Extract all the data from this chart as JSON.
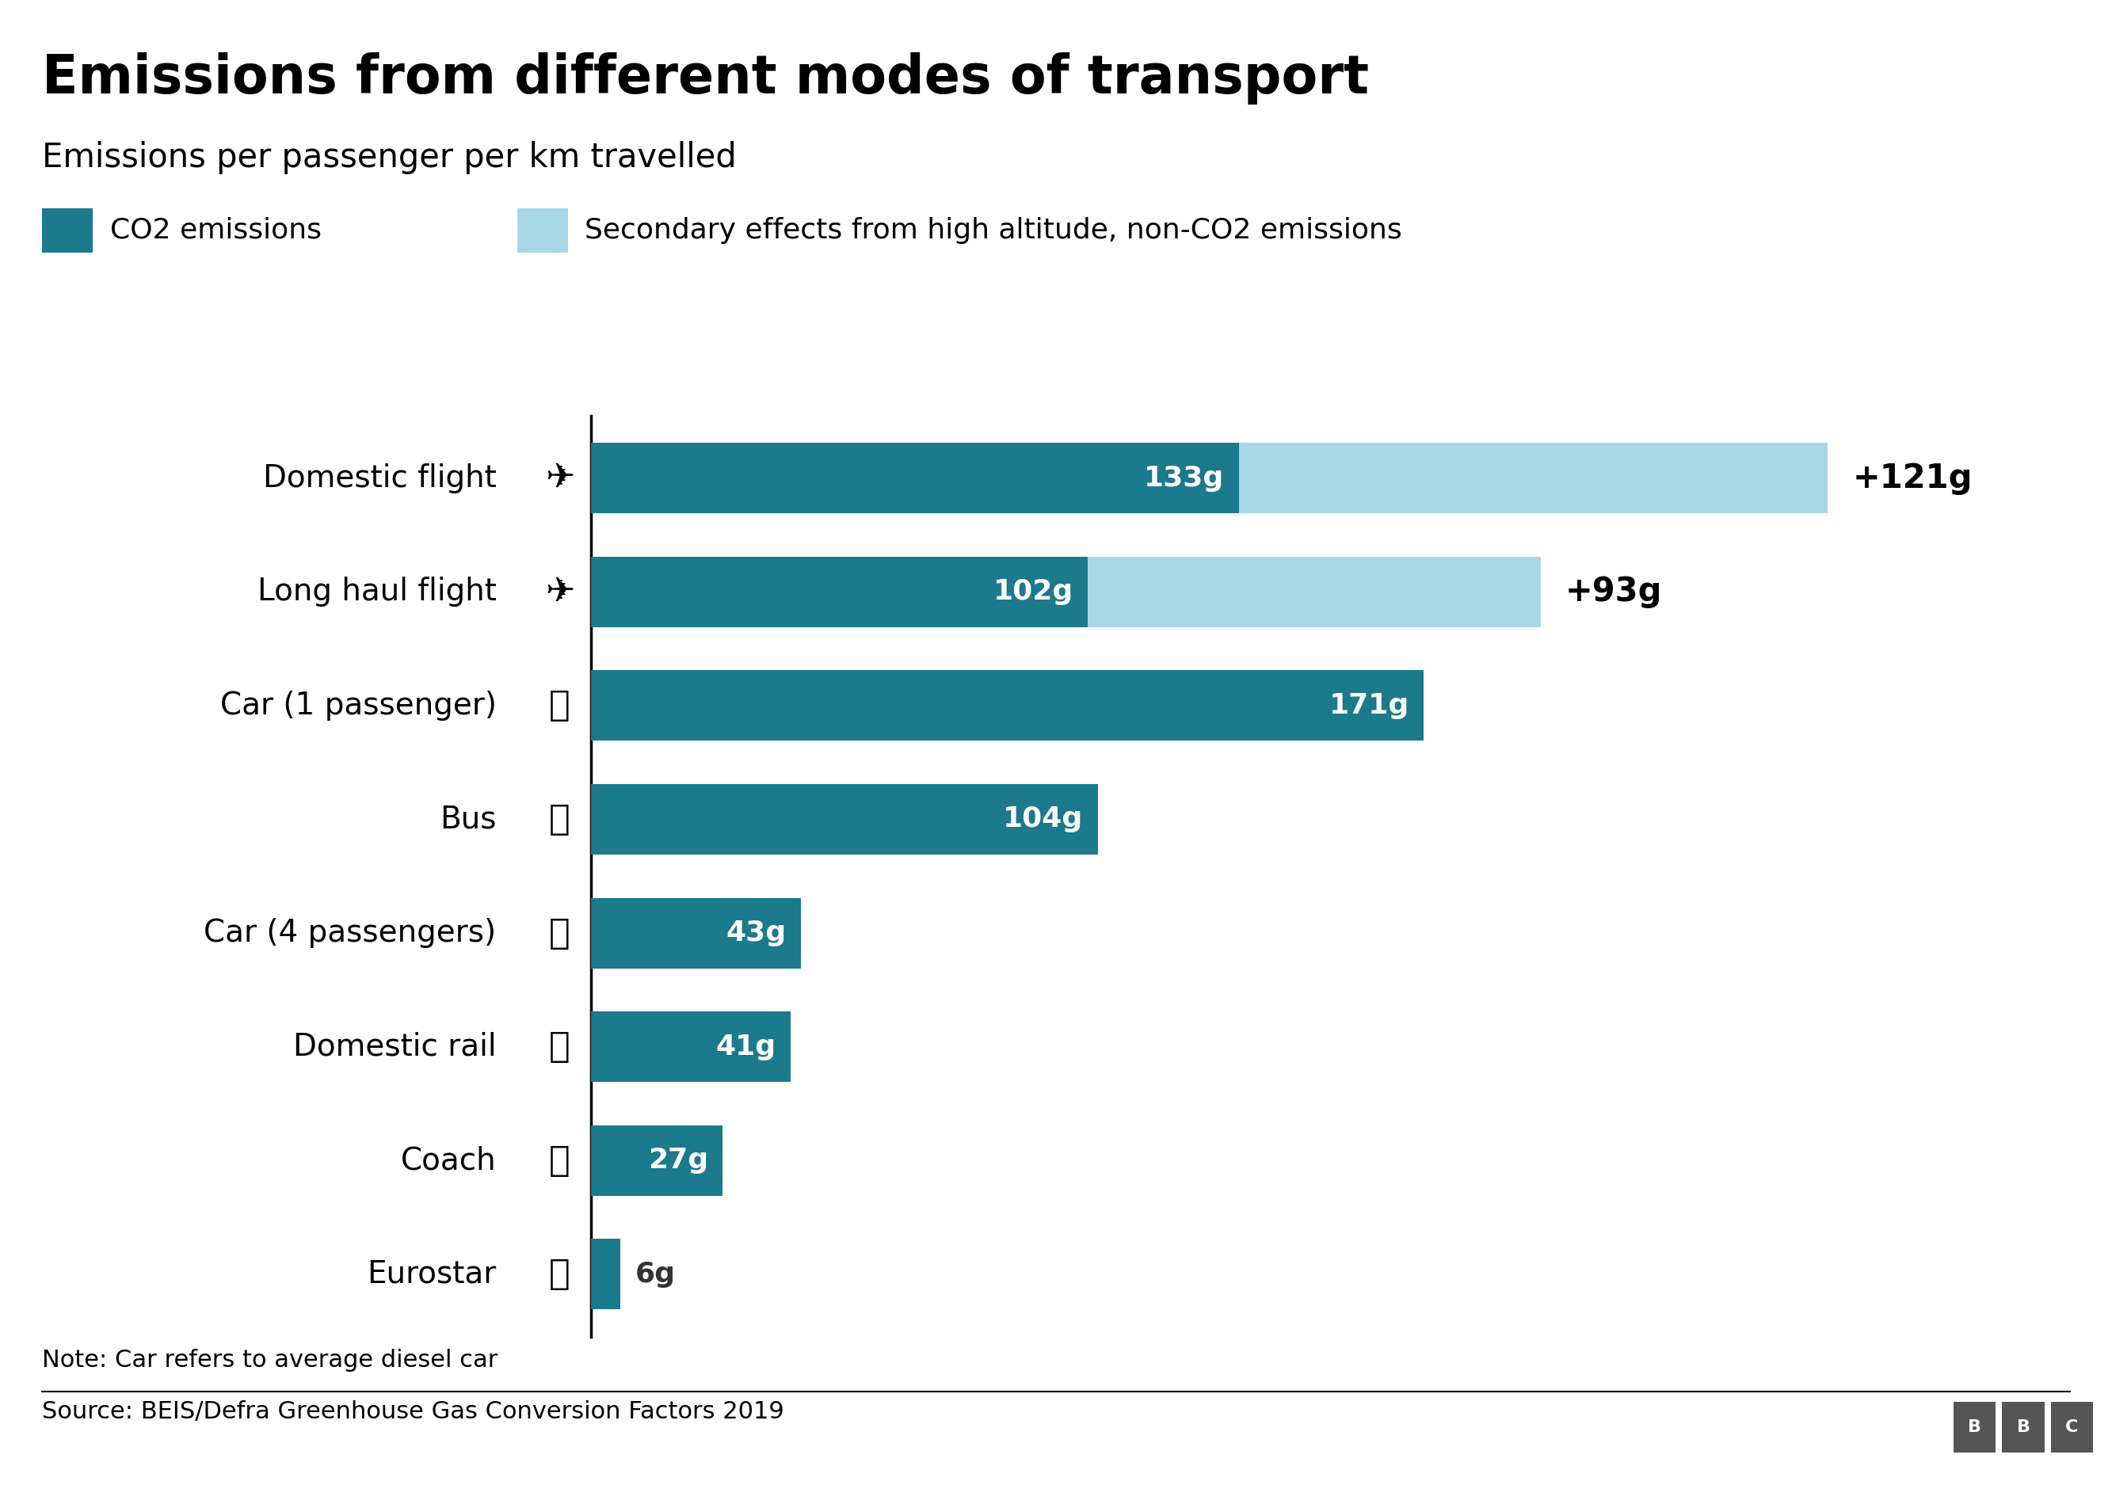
{
  "title": "Emissions from different modes of transport",
  "subtitle": "Emissions per passenger per km travelled",
  "categories": [
    "Domestic flight",
    "Long haul flight",
    "Car (1 passenger)",
    "Bus",
    "Car (4 passengers)",
    "Domestic rail",
    "Coach",
    "Eurostar"
  ],
  "icons": [
    "✈",
    "✈",
    "▮",
    "▮",
    "▮",
    "▮",
    "▮",
    "▮"
  ],
  "co2_values": [
    133,
    102,
    171,
    104,
    43,
    41,
    27,
    6
  ],
  "secondary_values": [
    121,
    93,
    0,
    0,
    0,
    0,
    0,
    0
  ],
  "co2_color": "#1b7a8c",
  "secondary_color": "#a8d8e8",
  "bar_height": 0.62,
  "xlim": [
    0,
    295
  ],
  "note": "Note: Car refers to average diesel car",
  "source": "Source: BEIS/Defra Greenhouse Gas Conversion Factors 2019",
  "legend_co2": "CO2 emissions",
  "legend_secondary": "Secondary effects from high altitude, non-CO2 emissions",
  "background_color": "#ffffff",
  "title_fontsize": 48,
  "subtitle_fontsize": 30,
  "legend_fontsize": 26,
  "label_fontsize": 28,
  "value_fontsize": 26,
  "note_fontsize": 22,
  "source_fontsize": 22
}
